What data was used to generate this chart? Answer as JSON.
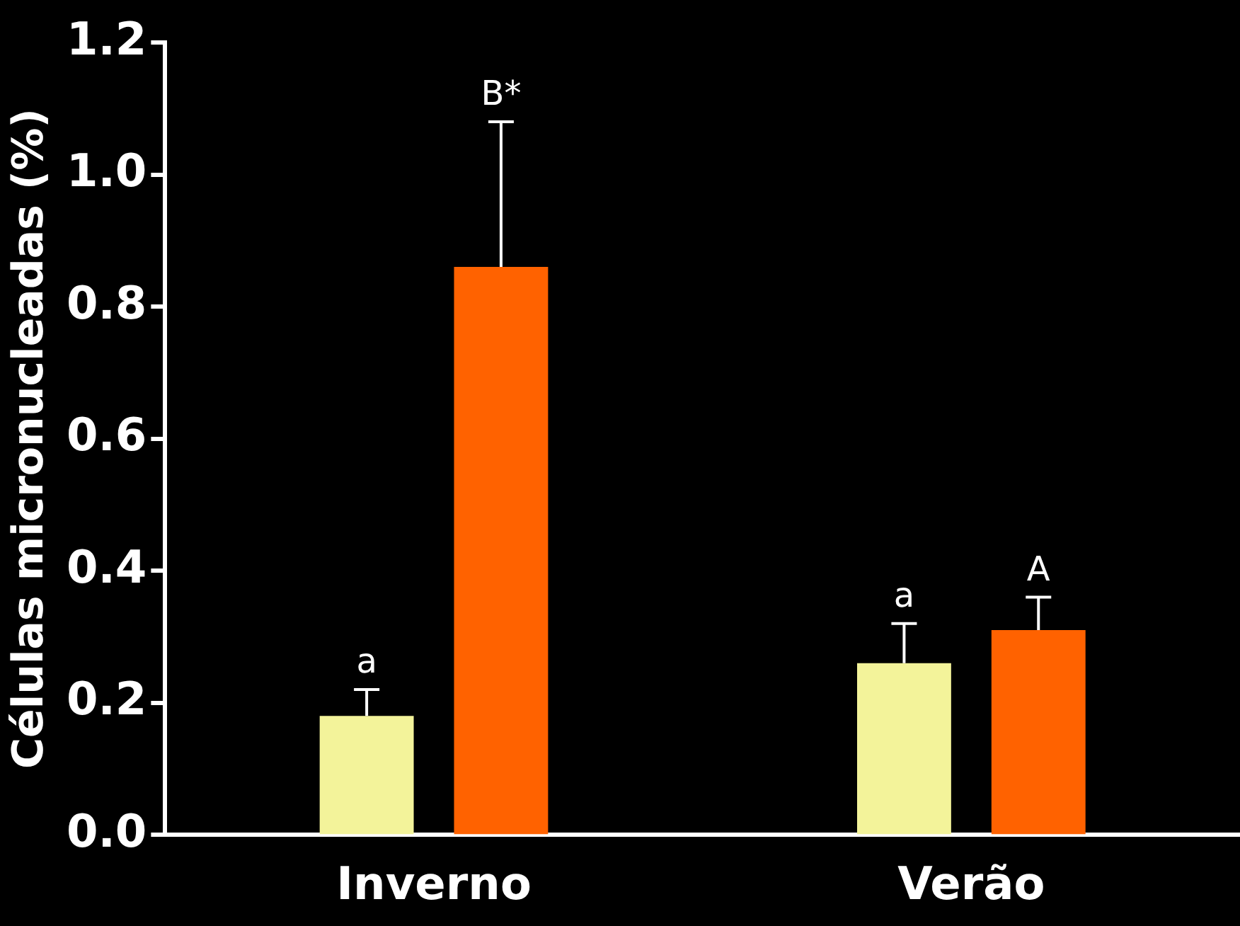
{
  "chart_data": {
    "type": "bar",
    "ylabel": "Células micronucleadas (%)",
    "categories": [
      "Inverno",
      "Verão"
    ],
    "series": [
      {
        "color": "#f3f39a",
        "values": [
          0.18,
          0.26
        ],
        "errors": [
          [
            0.18,
            0.22
          ],
          [
            0.26,
            0.32
          ]
        ]
      },
      {
        "color": "#ff6200",
        "values": [
          0.86,
          0.31
        ],
        "errors": [
          [
            0.86,
            1.08
          ],
          [
            0.31,
            0.36
          ]
        ]
      }
    ],
    "ylim": [
      0,
      1.2
    ],
    "yticks": [
      {
        "value": 0,
        "label": "0.0"
      },
      {
        "value": 0.2,
        "label": "0.2"
      },
      {
        "value": 0.4,
        "label": "0.4"
      },
      {
        "value": 0.6,
        "label": "0.6"
      },
      {
        "value": 0.8,
        "label": "0.8"
      },
      {
        "value": 1,
        "label": "1.0"
      },
      {
        "value": 1.2,
        "label": "1.2"
      }
    ],
    "grid": false,
    "legend": false,
    "annotations": [
      "a",
      "B*",
      "a",
      "A"
    ]
  }
}
